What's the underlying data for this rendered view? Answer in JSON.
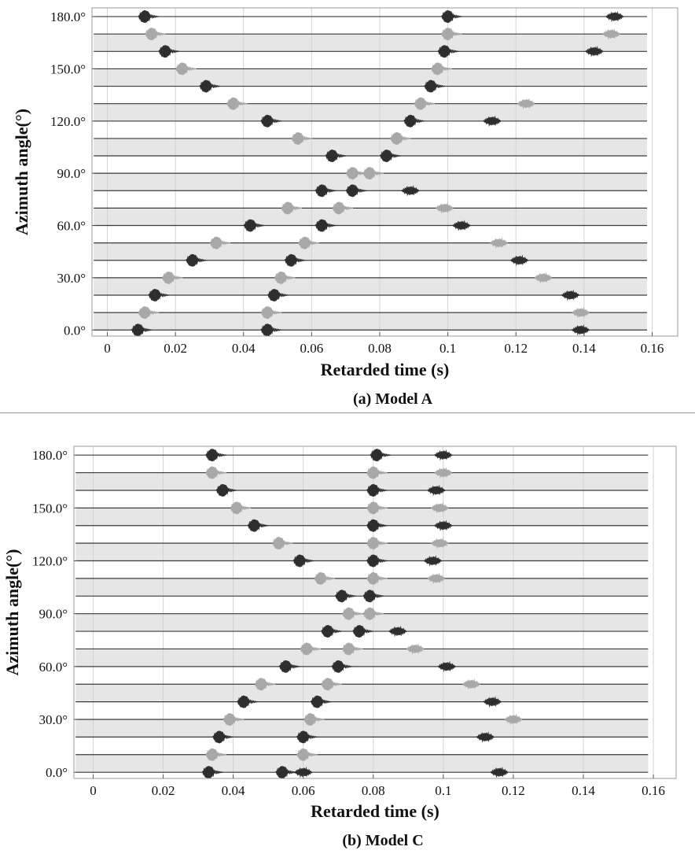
{
  "chart_data": [
    {
      "type": "line",
      "panel": "a",
      "caption": "(a) Model A",
      "xlabel": "Retarded time (s)",
      "ylabel": "Azimuth angle(°)",
      "xlim": [
        -0.0045,
        0.1675
      ],
      "ylim": [
        -3.5,
        185
      ],
      "x_ticks": [
        0,
        0.02,
        0.04,
        0.06,
        0.08,
        0.1,
        0.12,
        0.14,
        0.16
      ],
      "x_tick_labels": [
        "0",
        "0.02",
        "0.04",
        "0.06",
        "0.08",
        "0.1",
        "0.12",
        "0.14",
        "0.16"
      ],
      "y_ticks": [
        0,
        30,
        60,
        90,
        120,
        150,
        180
      ],
      "y_tick_labels": [
        "0.0°",
        "30.0°",
        "60.0°",
        "90.0°",
        "120.0°",
        "150.0°",
        "180.0°"
      ],
      "grid": true,
      "trace_x_range": [
        -0.004,
        0.1585
      ],
      "trace_angles": [
        0,
        10,
        20,
        30,
        40,
        50,
        60,
        70,
        80,
        90,
        100,
        110,
        120,
        130,
        140,
        150,
        160,
        170,
        180
      ],
      "pulses": [
        {
          "angle": 0,
          "arrivals": [
            0.009,
            0.047,
            0.139
          ]
        },
        {
          "angle": 10,
          "arrivals": [
            0.011,
            0.047,
            0.139
          ]
        },
        {
          "angle": 20,
          "arrivals": [
            0.014,
            0.049,
            0.136
          ]
        },
        {
          "angle": 30,
          "arrivals": [
            0.018,
            0.051,
            0.128
          ]
        },
        {
          "angle": 40,
          "arrivals": [
            0.025,
            0.054,
            0.121
          ]
        },
        {
          "angle": 50,
          "arrivals": [
            0.032,
            0.058,
            0.115
          ]
        },
        {
          "angle": 60,
          "arrivals": [
            0.042,
            0.063,
            0.104
          ]
        },
        {
          "angle": 70,
          "arrivals": [
            0.053,
            0.068,
            0.099
          ]
        },
        {
          "angle": 80,
          "arrivals": [
            0.063,
            0.072,
            0.089
          ]
        },
        {
          "angle": 90,
          "arrivals": [
            0.072,
            0.077
          ]
        },
        {
          "angle": 100,
          "arrivals": [
            0.066,
            0.082
          ]
        },
        {
          "angle": 110,
          "arrivals": [
            0.056,
            0.085
          ]
        },
        {
          "angle": 120,
          "arrivals": [
            0.047,
            0.089,
            0.113
          ]
        },
        {
          "angle": 130,
          "arrivals": [
            0.037,
            0.092,
            0.123
          ]
        },
        {
          "angle": 140,
          "arrivals": [
            0.029,
            0.095
          ]
        },
        {
          "angle": 150,
          "arrivals": [
            0.022,
            0.097
          ]
        },
        {
          "angle": 160,
          "arrivals": [
            0.017,
            0.099,
            0.143
          ]
        },
        {
          "angle": 170,
          "arrivals": [
            0.013,
            0.1,
            0.148
          ]
        },
        {
          "angle": 180,
          "arrivals": [
            0.011,
            0.1,
            0.149
          ]
        }
      ]
    },
    {
      "type": "line",
      "panel": "b",
      "caption": "(b) Model C",
      "xlabel": "Retarded time (s)",
      "ylabel": "Azimuth angle(°)",
      "xlim": [
        -0.0055,
        0.1665
      ],
      "ylim": [
        -3.5,
        185
      ],
      "x_ticks": [
        0,
        0.02,
        0.04,
        0.06,
        0.08,
        0.1,
        0.12,
        0.14,
        0.16
      ],
      "x_tick_labels": [
        "0",
        "0.02",
        "0.04",
        "0.06",
        "0.08",
        "0.1",
        "0.12",
        "0.14",
        "0.16"
      ],
      "y_ticks": [
        0,
        30,
        60,
        90,
        120,
        150,
        180
      ],
      "y_tick_labels": [
        "0.0°",
        "30.0°",
        "60.0°",
        "90.0°",
        "120.0°",
        "150.0°",
        "180.0°"
      ],
      "grid": true,
      "trace_x_range": [
        -0.005,
        0.1585
      ],
      "trace_angles": [
        0,
        10,
        20,
        30,
        40,
        50,
        60,
        70,
        80,
        90,
        100,
        110,
        120,
        130,
        140,
        150,
        160,
        170,
        180
      ],
      "pulses": [
        {
          "angle": 0,
          "arrivals": [
            0.033,
            0.054,
            0.06,
            0.116
          ]
        },
        {
          "angle": 10,
          "arrivals": [
            0.034,
            0.06
          ]
        },
        {
          "angle": 20,
          "arrivals": [
            0.036,
            0.06,
            0.112
          ]
        },
        {
          "angle": 30,
          "arrivals": [
            0.039,
            0.062,
            0.12
          ]
        },
        {
          "angle": 40,
          "arrivals": [
            0.043,
            0.064,
            0.114
          ]
        },
        {
          "angle": 50,
          "arrivals": [
            0.048,
            0.067,
            0.108
          ]
        },
        {
          "angle": 60,
          "arrivals": [
            0.055,
            0.07,
            0.101
          ]
        },
        {
          "angle": 70,
          "arrivals": [
            0.061,
            0.073,
            0.092
          ]
        },
        {
          "angle": 80,
          "arrivals": [
            0.067,
            0.076,
            0.087
          ]
        },
        {
          "angle": 90,
          "arrivals": [
            0.073,
            0.079
          ]
        },
        {
          "angle": 100,
          "arrivals": [
            0.071,
            0.079
          ]
        },
        {
          "angle": 110,
          "arrivals": [
            0.065,
            0.08,
            0.098
          ]
        },
        {
          "angle": 120,
          "arrivals": [
            0.059,
            0.08,
            0.097
          ]
        },
        {
          "angle": 130,
          "arrivals": [
            0.053,
            0.08,
            0.099
          ]
        },
        {
          "angle": 140,
          "arrivals": [
            0.046,
            0.08,
            0.1
          ]
        },
        {
          "angle": 150,
          "arrivals": [
            0.041,
            0.08,
            0.099
          ]
        },
        {
          "angle": 160,
          "arrivals": [
            0.037,
            0.08,
            0.098
          ]
        },
        {
          "angle": 170,
          "arrivals": [
            0.034,
            0.08,
            0.1
          ]
        },
        {
          "angle": 180,
          "arrivals": [
            0.034,
            0.081,
            0.1
          ]
        }
      ]
    }
  ],
  "colors": {
    "band_fill": "#e6e6e6",
    "trace_line": "#3a3a3a",
    "grid": "#d3d3d3",
    "frame": "#9b9b9b",
    "pulse_dark": "#2e2e2e",
    "pulse_light": "#a8a8a8"
  }
}
